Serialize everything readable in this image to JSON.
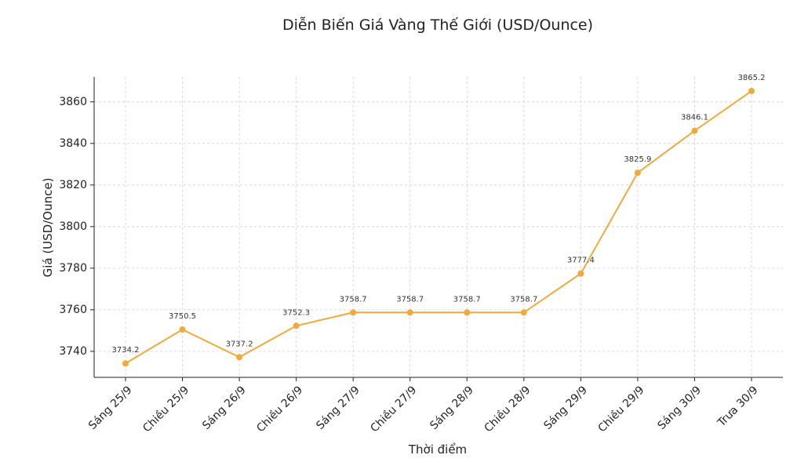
{
  "chart_data": {
    "type": "line",
    "title": "Diễn Biến Giá Vàng Thế Giới (USD/Ounce)",
    "x_label": "Thời điểm",
    "y_label": "Giá (USD/Ounce)",
    "categories": [
      "Sáng 25/9",
      "Chiều 25/9",
      "Sáng 26/9",
      "Chiều 26/9",
      "Sáng 27/9",
      "Chiều 27/9",
      "Sáng 28/9",
      "Chiều 28/9",
      "Sáng 29/9",
      "Chiều 29/9",
      "Sáng 30/9",
      "Trưa 30/9"
    ],
    "series": [
      {
        "name": "Giá",
        "color": "#f0aa3c",
        "values": [
          3734.2,
          3750.5,
          3737.2,
          3752.3,
          3758.7,
          3758.7,
          3758.7,
          3758.7,
          3777.4,
          3825.9,
          3846.1,
          3865.2
        ]
      }
    ],
    "ylim": [
      3727.5,
      3872
    ],
    "yticks": [
      3740,
      3760,
      3780,
      3800,
      3820,
      3840,
      3860
    ],
    "grid": true
  }
}
